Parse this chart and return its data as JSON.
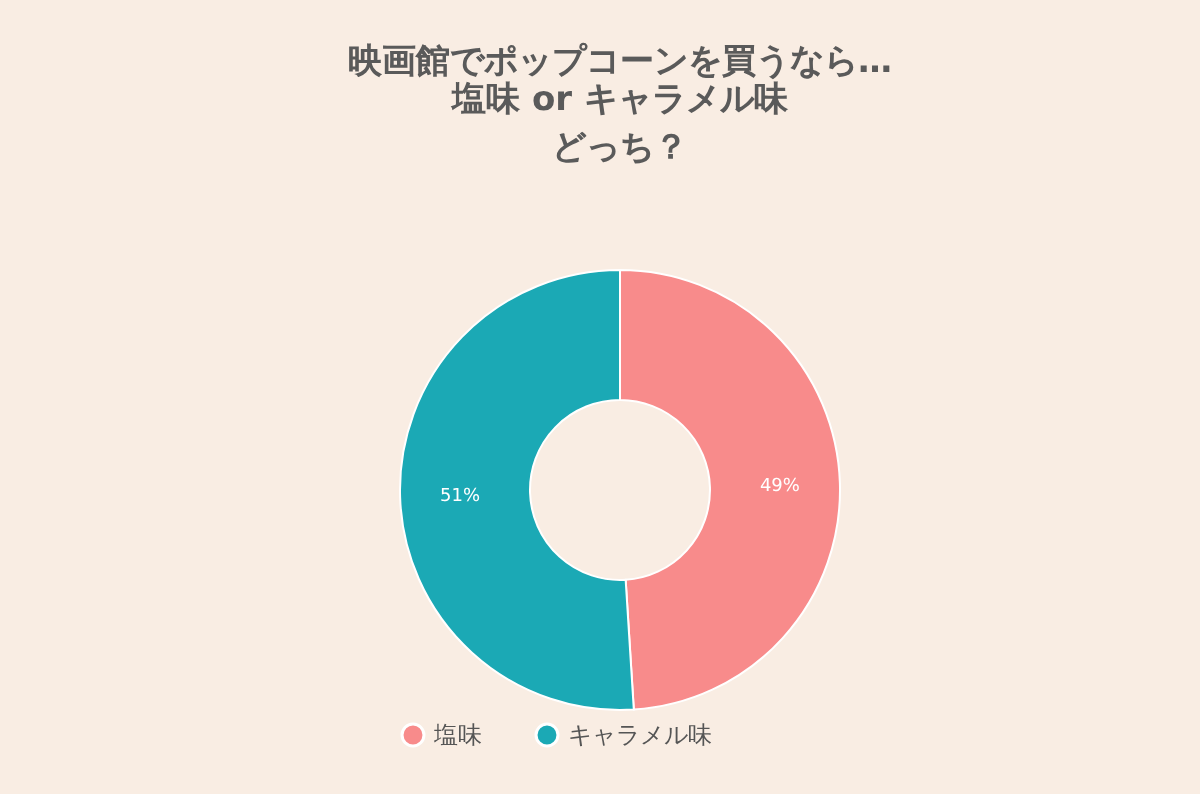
{
  "chart_data": {
    "type": "donut",
    "title": "映画館でポップコーンを買うなら…",
    "subtitle": "塩味 or キャラメル味どっち？",
    "categories": [
      "塩味",
      "キャラメル味"
    ],
    "values": [
      49,
      51
    ],
    "colors": [
      "#f88b8b",
      "#1ba9b5"
    ],
    "value_labels": [
      "49%",
      "51%"
    ],
    "legend": "bottom"
  }
}
